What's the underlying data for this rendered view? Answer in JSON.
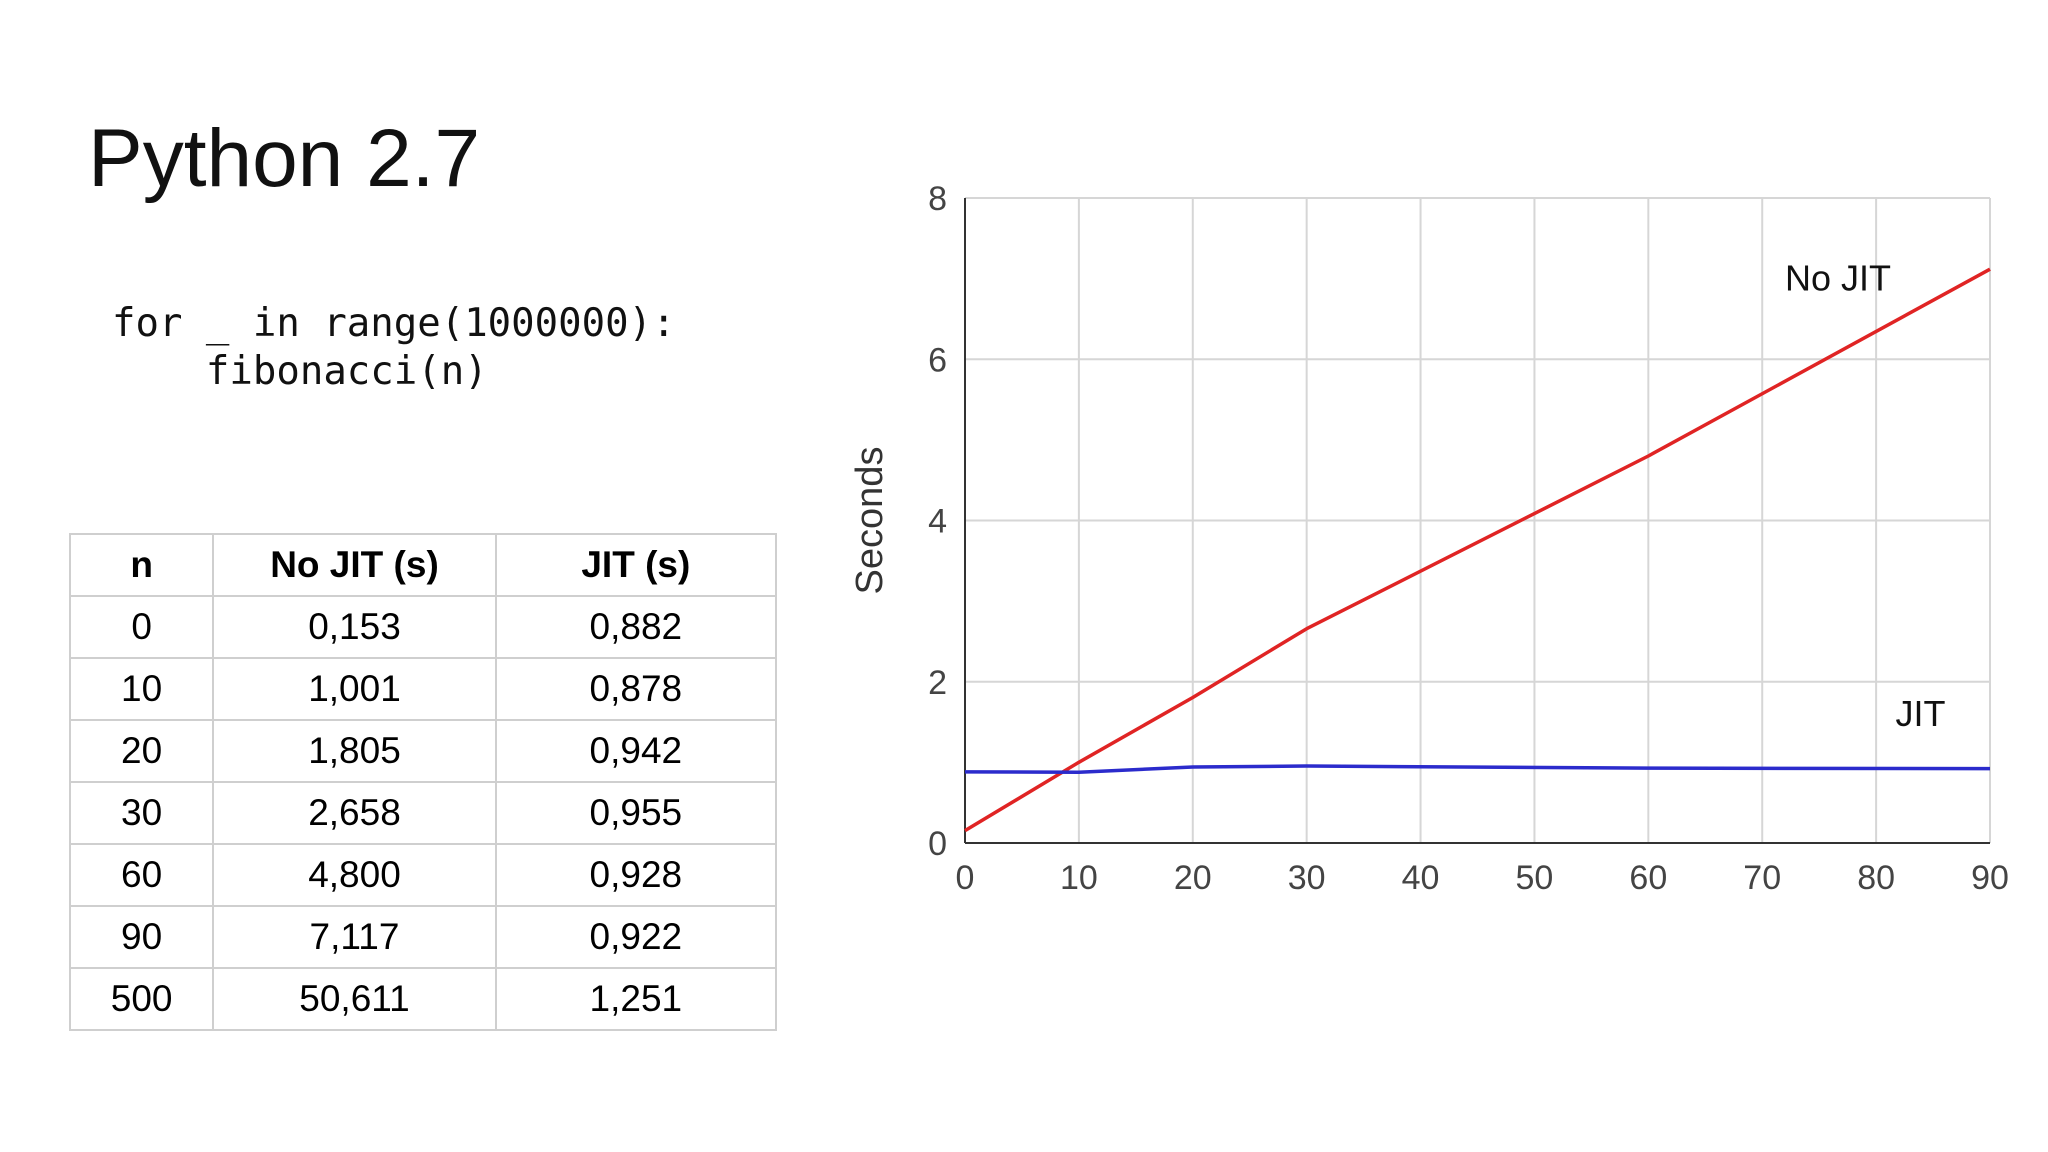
{
  "slide": {
    "title": "Python 2.7",
    "code_lines": [
      "for _ in range(1000000):",
      "    fibonacci(n)"
    ]
  },
  "table": {
    "headers": [
      "n",
      "No JIT (s)",
      "JIT (s)"
    ],
    "rows": [
      [
        "0",
        "0,153",
        "0,882"
      ],
      [
        "10",
        "1,001",
        "0,878"
      ],
      [
        "20",
        "1,805",
        "0,942"
      ],
      [
        "30",
        "2,658",
        "0,955"
      ],
      [
        "60",
        "4,800",
        "0,928"
      ],
      [
        "90",
        "7,117",
        "0,922"
      ],
      [
        "500",
        "50,611",
        "1,251"
      ]
    ]
  },
  "chart_data": {
    "type": "line",
    "title": "",
    "xlabel": "",
    "ylabel": "Seconds",
    "xlim": [
      0,
      90
    ],
    "ylim": [
      0,
      8
    ],
    "x_ticks": [
      0,
      10,
      20,
      30,
      40,
      50,
      60,
      70,
      80,
      90
    ],
    "y_ticks": [
      0,
      2,
      4,
      6,
      8
    ],
    "grid": true,
    "series": [
      {
        "name": "No JIT",
        "color": "#e02424",
        "x": [
          0,
          10,
          20,
          30,
          60,
          90
        ],
        "y": [
          0.153,
          1.001,
          1.805,
          2.658,
          4.8,
          7.117
        ]
      },
      {
        "name": "JIT",
        "color": "#2b2bcc",
        "x": [
          0,
          10,
          20,
          30,
          60,
          90
        ],
        "y": [
          0.882,
          0.878,
          0.942,
          0.955,
          0.928,
          0.922
        ]
      }
    ]
  }
}
